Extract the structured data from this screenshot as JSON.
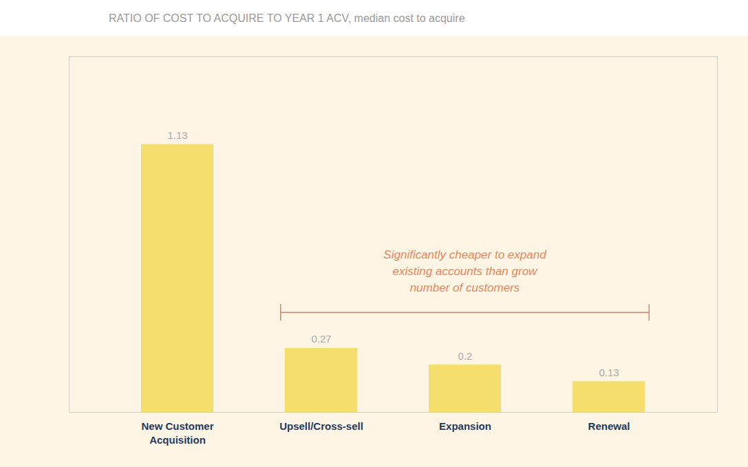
{
  "chart_data": {
    "type": "bar",
    "title": "RATIO OF COST TO ACQUIRE TO YEAR 1 ACV, median cost to acquire",
    "categories": [
      "New Customer\nAcquisition",
      "Upsell/Cross-sell",
      "Expansion",
      "Renewal"
    ],
    "values": [
      1.13,
      0.27,
      0.2,
      0.13
    ],
    "color": "#f5dd6e",
    "ylim": [
      0,
      1.5
    ],
    "yticks": [],
    "tick_labels": "x",
    "data_labels": true,
    "grid": false,
    "annotation": "Significantly cheaper to expand\nexisting accounts than grow\nnumber of customers"
  }
}
